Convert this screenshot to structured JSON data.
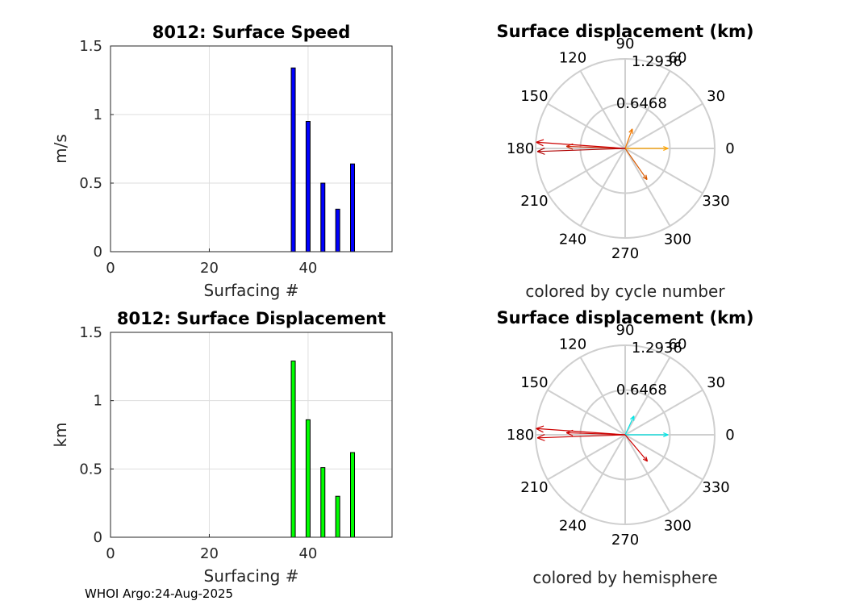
{
  "footer": {
    "text": "WHOI Argo:24-Aug-2025"
  },
  "chart_data": [
    {
      "type": "bar",
      "title": "8012: Surface Speed",
      "xlabel": "Surfacing #",
      "ylabel": "m/s",
      "xlim": [
        0,
        57
      ],
      "ylim": [
        0,
        1.5
      ],
      "xticks": [
        "0",
        "20",
        "40"
      ],
      "yticks": [
        "0",
        "0.5",
        "1",
        "1.5"
      ],
      "grid": true,
      "bar_color": "#0000ff",
      "x": [
        37,
        40,
        43,
        46,
        49
      ],
      "values": [
        1.34,
        0.95,
        0.5,
        0.31,
        0.64
      ]
    },
    {
      "type": "polar",
      "title": "Surface displacement (km)",
      "caption": "colored by cycle number",
      "rmax": 1.2936,
      "ring_labels": [
        "0.6468",
        "1.2936"
      ],
      "angle_labels": [
        "0",
        "30",
        "60",
        "90",
        "120",
        "150",
        "180",
        "210",
        "240",
        "270",
        "300",
        "330"
      ],
      "vectors": [
        {
          "angle": 0,
          "r": 0.62,
          "color": "#ffa500"
        },
        {
          "angle": 70,
          "r": 0.3,
          "color": "#f07800"
        },
        {
          "angle": -55,
          "r": 0.55,
          "color": "#d85a00"
        },
        {
          "angle": 178,
          "r": 0.85,
          "color": "#cc2200"
        },
        {
          "angle": 176,
          "r": 1.29,
          "color": "#cc0000"
        },
        {
          "angle": 182,
          "r": 1.27,
          "color": "#b00000"
        }
      ]
    },
    {
      "type": "bar",
      "title": "8012: Surface Displacement",
      "xlabel": "Surfacing #",
      "ylabel": "km",
      "xlim": [
        0,
        57
      ],
      "ylim": [
        0,
        1.5
      ],
      "xticks": [
        "0",
        "20",
        "40"
      ],
      "yticks": [
        "0",
        "0.5",
        "1",
        "1.5"
      ],
      "grid": true,
      "bar_color": "#00ff00",
      "x": [
        37,
        40,
        43,
        46,
        49
      ],
      "values": [
        1.29,
        0.86,
        0.51,
        0.3,
        0.62
      ]
    },
    {
      "type": "polar",
      "title": "Surface displacement (km)",
      "caption": "colored by hemisphere",
      "rmax": 1.2936,
      "ring_labels": [
        "0.6468",
        "1.2936"
      ],
      "angle_labels": [
        "0",
        "30",
        "60",
        "90",
        "120",
        "150",
        "180",
        "210",
        "240",
        "270",
        "300",
        "330"
      ],
      "vectors": [
        {
          "angle": 0,
          "r": 0.62,
          "color": "#00e5e5"
        },
        {
          "angle": 65,
          "r": 0.3,
          "color": "#00e5e5"
        },
        {
          "angle": -50,
          "r": 0.5,
          "color": "#cc0000"
        },
        {
          "angle": 178,
          "r": 0.85,
          "color": "#cc0000"
        },
        {
          "angle": 176,
          "r": 1.29,
          "color": "#cc0000"
        },
        {
          "angle": 182,
          "r": 1.27,
          "color": "#cc0000"
        }
      ]
    }
  ]
}
